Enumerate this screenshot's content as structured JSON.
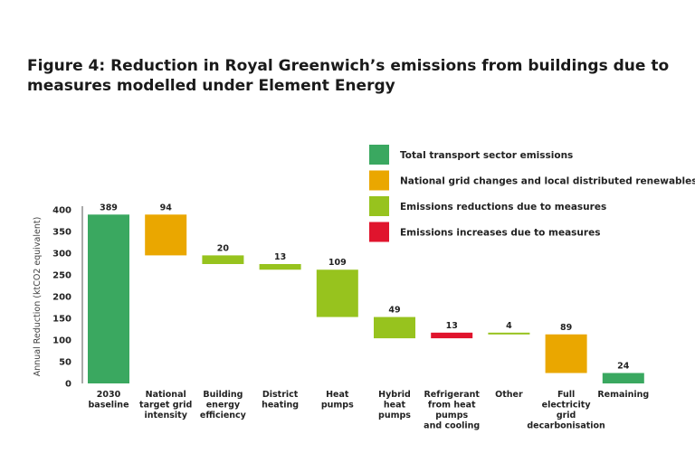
{
  "title": "Figure 4: Reduction in Royal Greenwich’s emissions from buildings due to measures modelled under Element Energy",
  "colors": {
    "transport": "#3aa860",
    "grid": "#eaa700",
    "reduction": "#97c31e",
    "increase": "#e0142d"
  },
  "chart_data": {
    "type": "bar",
    "subtype": "waterfall",
    "ylabel": "Annual Reduction (ktCO2 equivalent)",
    "ylim": [
      0,
      400
    ],
    "yticks": [
      0,
      50,
      100,
      150,
      200,
      250,
      300,
      350,
      400
    ],
    "legend_position": "top-right",
    "legend": [
      {
        "key": "transport",
        "label": "Total transport sector emissions"
      },
      {
        "key": "grid",
        "label": "National grid changes and local distributed renewables"
      },
      {
        "key": "reduction",
        "label": "Emissions reductions due to measures"
      },
      {
        "key": "increase",
        "label": "Emissions increases due to measures"
      }
    ],
    "bars": [
      {
        "label": [
          "2030",
          "baseline"
        ],
        "value": 389,
        "start": 0,
        "end": 389,
        "kind": "transport"
      },
      {
        "label": [
          "National",
          "target grid",
          "intensity"
        ],
        "value": 94,
        "start": 295,
        "end": 389,
        "kind": "grid"
      },
      {
        "label": [
          "Building",
          "energy",
          "efficiency"
        ],
        "value": 20,
        "start": 275,
        "end": 295,
        "kind": "reduction"
      },
      {
        "label": [
          "District",
          "heating"
        ],
        "value": 13,
        "start": 262,
        "end": 275,
        "kind": "reduction"
      },
      {
        "label": [
          "Heat",
          "pumps"
        ],
        "value": 109,
        "start": 153,
        "end": 262,
        "kind": "reduction"
      },
      {
        "label": [
          "Hybrid",
          "heat",
          "pumps"
        ],
        "value": 49,
        "start": 104,
        "end": 153,
        "kind": "reduction"
      },
      {
        "label": [
          "Refrigerant",
          "from heat",
          "pumps",
          "and cooling"
        ],
        "value": 13,
        "start": 104,
        "end": 117,
        "kind": "increase"
      },
      {
        "label": [
          "Other"
        ],
        "value": 4,
        "start": 113,
        "end": 117,
        "kind": "reduction"
      },
      {
        "label": [
          "Full",
          "electricity",
          "grid",
          "decarbonisation"
        ],
        "value": 89,
        "start": 24,
        "end": 113,
        "kind": "grid"
      },
      {
        "label": [
          "Remaining"
        ],
        "value": 24,
        "start": 0,
        "end": 24,
        "kind": "transport"
      }
    ]
  }
}
